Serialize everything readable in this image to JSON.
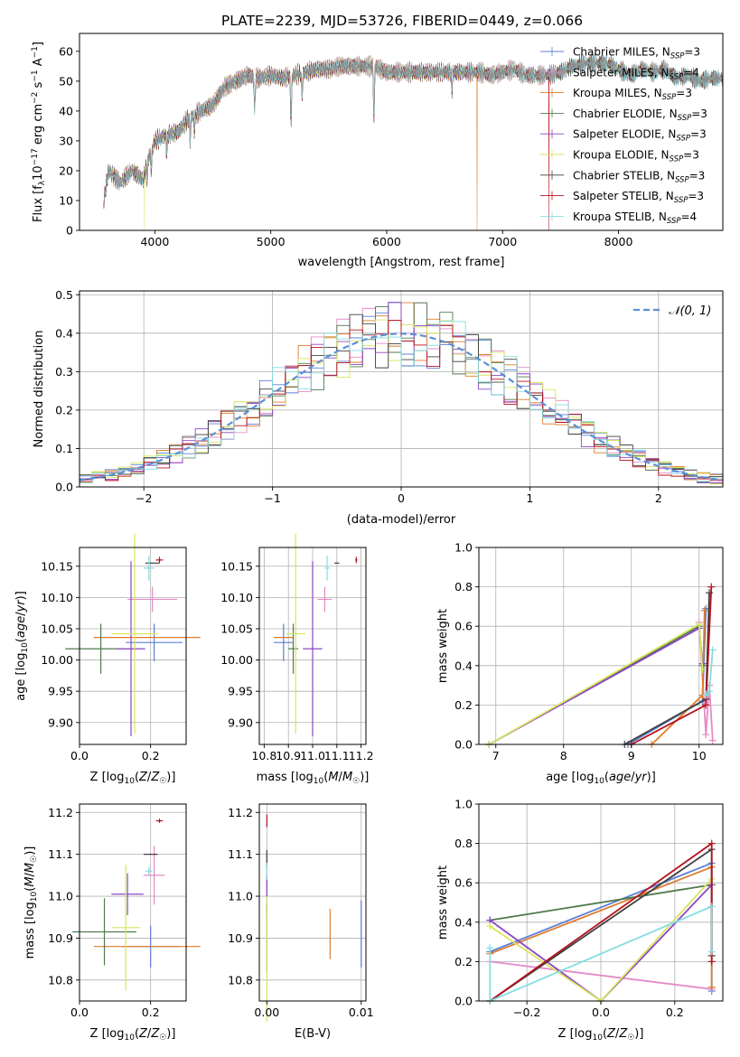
{
  "figure": {
    "title": "PLATE=2239, MJD=53726, FIBERID=0449, z=0.066"
  },
  "colors": {
    "Chabrier MILES": "#5b7fd6",
    "Salpeter MILES": "#e58ac7",
    "Kroupa MILES": "#e07b2a",
    "Chabrier ELODIE": "#4f7a4f",
    "Salpeter ELODIE": "#8e44c4",
    "Kroupa ELODIE": "#d6e65c",
    "Chabrier STELIB": "#404040",
    "Salpeter STELIB": "#b5121b",
    "Kroupa STELIB": "#84dde0",
    "normal": "#5b8fd6",
    "spectrum": "#6a6a6a"
  },
  "chart_data": [
    {
      "id": "spectrum",
      "type": "line",
      "xlabel": "wavelength [Angstrom, rest frame]",
      "ylabel": "Flux [f_λ10^-17 erg cm^-2 s^-1 A^-1]",
      "xlim": [
        3350,
        8900
      ],
      "ylim": [
        0,
        66
      ],
      "xticks": [
        4000,
        5000,
        6000,
        7000,
        8000
      ],
      "yticks": [
        0,
        10,
        20,
        30,
        40,
        50,
        60
      ],
      "legend_position": "upper-right",
      "legend": [
        {
          "model": "Chabrier MILES",
          "nssp": "3"
        },
        {
          "model": "Salpeter MILES",
          "nssp": "4"
        },
        {
          "model": "Kroupa MILES",
          "nssp": "3"
        },
        {
          "model": "Chabrier ELODIE",
          "nssp": "3"
        },
        {
          "model": "Salpeter ELODIE",
          "nssp": "3"
        },
        {
          "model": "Kroupa ELODIE",
          "nssp": "3"
        },
        {
          "model": "Chabrier STELIB",
          "nssp": "3"
        },
        {
          "model": "Salpeter STELIB",
          "nssp": "3"
        },
        {
          "model": "Kroupa STELIB",
          "nssp": "4"
        }
      ],
      "continuum": [
        [
          3560,
          10
        ],
        [
          3600,
          20
        ],
        [
          3700,
          16
        ],
        [
          3800,
          20
        ],
        [
          3900,
          17
        ],
        [
          3950,
          25
        ],
        [
          4000,
          30
        ],
        [
          4100,
          32
        ],
        [
          4200,
          33
        ],
        [
          4300,
          38
        ],
        [
          4400,
          40
        ],
        [
          4500,
          42
        ],
        [
          4600,
          48
        ],
        [
          4700,
          50
        ],
        [
          4800,
          52
        ],
        [
          4900,
          51
        ],
        [
          5000,
          52
        ],
        [
          5100,
          51
        ],
        [
          5200,
          52
        ],
        [
          5300,
          53
        ],
        [
          5400,
          54
        ],
        [
          5500,
          54
        ],
        [
          5600,
          55
        ],
        [
          5700,
          55
        ],
        [
          5800,
          55
        ],
        [
          5900,
          55
        ],
        [
          6000,
          53
        ],
        [
          6100,
          53
        ],
        [
          6200,
          53
        ],
        [
          6300,
          53
        ],
        [
          6400,
          53
        ],
        [
          6500,
          53
        ],
        [
          6600,
          53
        ],
        [
          6700,
          53
        ],
        [
          6800,
          53
        ],
        [
          6900,
          52
        ],
        [
          7000,
          53
        ],
        [
          7100,
          54
        ],
        [
          7200,
          52
        ],
        [
          7300,
          52
        ],
        [
          7400,
          52
        ],
        [
          7500,
          53
        ],
        [
          7600,
          55
        ],
        [
          7700,
          56
        ],
        [
          7800,
          56
        ],
        [
          7900,
          56
        ],
        [
          8000,
          54
        ],
        [
          8100,
          52
        ],
        [
          8200,
          54
        ],
        [
          8300,
          53
        ],
        [
          8400,
          54
        ],
        [
          8500,
          51
        ],
        [
          8600,
          52
        ],
        [
          8700,
          50
        ],
        [
          8800,
          51
        ]
      ],
      "absorption_lines": [
        [
          3934,
          18
        ],
        [
          3969,
          20
        ],
        [
          4102,
          26
        ],
        [
          4304,
          30
        ],
        [
          4341,
          33
        ],
        [
          4861,
          40
        ],
        [
          5175,
          36
        ],
        [
          5270,
          45
        ],
        [
          5890,
          36
        ],
        [
          6563,
          47
        ]
      ],
      "model_drops": [
        {
          "model": "Kroupa ELODIE",
          "x": 3910
        },
        {
          "model": "Kroupa MILES",
          "x": 6780
        },
        {
          "model": "Salpeter STELIB",
          "x": 7400
        }
      ]
    },
    {
      "id": "residuals",
      "type": "histogram",
      "xlabel": "(data-model)/error",
      "ylabel": "Normed distribution",
      "xlim": [
        -2.5,
        2.5
      ],
      "ylim": [
        0,
        0.51
      ],
      "xticks": [
        -2,
        -1,
        0,
        1,
        2
      ],
      "yticks": [
        0.0,
        0.1,
        0.2,
        0.3,
        0.4,
        0.5
      ],
      "grid": true,
      "legend_position": "upper-right",
      "legend": [
        {
          "label": "𝒩(0, 1)",
          "style": "dashed"
        }
      ],
      "bin_width": 0.1,
      "bin_start": -2.5,
      "series_noise_seeds": [
        11,
        23,
        37,
        41,
        53,
        67,
        71,
        83,
        97
      ]
    },
    {
      "id": "age-vs-Z",
      "type": "errorbar",
      "xlabel": "Z [log10(Z/Z☉)]",
      "ylabel": "age  [log10(age/yr)]",
      "xlim": [
        0.0,
        0.3
      ],
      "ylim": [
        9.865,
        10.18
      ],
      "xticks": [
        0.0,
        0.2
      ],
      "yticks": [
        9.9,
        9.95,
        10.0,
        10.05,
        10.1,
        10.15
      ],
      "grid": true,
      "points": [
        {
          "model": "Chabrier MILES",
          "x": 0.21,
          "xerr": 0.08,
          "y": 10.028,
          "yerr": 0.03
        },
        {
          "model": "Salpeter MILES",
          "x": 0.205,
          "xerr": 0.07,
          "y": 10.097,
          "yerr": 0.02
        },
        {
          "model": "Kroupa MILES",
          "x": 0.19,
          "xerr": 0.15,
          "y": 10.036,
          "yerr": 0.0
        },
        {
          "model": "Chabrier ELODIE",
          "x": 0.06,
          "xerr": 0.1,
          "y": 10.018,
          "yerr": 0.04
        },
        {
          "model": "Salpeter ELODIE",
          "x": 0.145,
          "xerr": 0.04,
          "y": 10.018,
          "yerr": 0.14
        },
        {
          "model": "Kroupa ELODIE",
          "x": 0.155,
          "xerr": 0.065,
          "y": 10.042,
          "yerr": 0.16
        },
        {
          "model": "Chabrier STELIB",
          "x": 0.205,
          "xerr": 0.02,
          "y": 10.155,
          "yerr": 0.0
        },
        {
          "model": "Salpeter STELIB",
          "x": 0.225,
          "xerr": 0.01,
          "y": 10.16,
          "yerr": 0.005
        },
        {
          "model": "Kroupa STELIB",
          "x": 0.195,
          "xerr": 0.015,
          "y": 10.147,
          "yerr": 0.02
        }
      ]
    },
    {
      "id": "age-vs-mass",
      "type": "errorbar",
      "xlabel": "mass [log10(M/M☉)]",
      "ylabel": "",
      "xlim": [
        10.78,
        11.22
      ],
      "ylim": [
        9.865,
        10.18
      ],
      "xticks": [
        10.8,
        10.9,
        11.0,
        11.1,
        11.2
      ],
      "yticks": [
        9.9,
        9.95,
        10.0,
        10.05,
        10.1,
        10.15
      ],
      "grid": true,
      "points": [
        {
          "model": "Chabrier MILES",
          "x": 10.88,
          "xerr": 0.04,
          "y": 10.028,
          "yerr": 0.03
        },
        {
          "model": "Salpeter MILES",
          "x": 11.05,
          "xerr": 0.03,
          "y": 10.097,
          "yerr": 0.02
        },
        {
          "model": "Kroupa MILES",
          "x": 10.88,
          "xerr": 0.04,
          "y": 10.036,
          "yerr": 0.0
        },
        {
          "model": "Chabrier ELODIE",
          "x": 10.92,
          "xerr": 0.02,
          "y": 10.018,
          "yerr": 0.04
        },
        {
          "model": "Salpeter ELODIE",
          "x": 11.0,
          "xerr": 0.04,
          "y": 10.018,
          "yerr": 0.14
        },
        {
          "model": "Kroupa ELODIE",
          "x": 10.93,
          "xerr": 0.04,
          "y": 10.042,
          "yerr": 0.16
        },
        {
          "model": "Chabrier STELIB",
          "x": 11.1,
          "xerr": 0.01,
          "y": 10.155,
          "yerr": 0.0
        },
        {
          "model": "Salpeter STELIB",
          "x": 11.18,
          "xerr": 0.005,
          "y": 10.16,
          "yerr": 0.005
        },
        {
          "model": "Kroupa STELIB",
          "x": 11.06,
          "xerr": 0.01,
          "y": 10.147,
          "yerr": 0.02
        }
      ]
    },
    {
      "id": "weight-vs-age",
      "type": "line",
      "xlabel": "age  [log10(age/yr)]",
      "ylabel": "mass weight",
      "xlim": [
        6.75,
        10.35
      ],
      "ylim": [
        0,
        1.0
      ],
      "xticks": [
        7,
        8,
        9,
        10
      ],
      "yticks": [
        0.0,
        0.2,
        0.4,
        0.6,
        0.8,
        1.0
      ],
      "grid": true,
      "series": [
        {
          "model": "Chabrier MILES",
          "x": [
            8.95,
            10.05,
            10.1
          ],
          "y": [
            0.0,
            0.22,
            0.69
          ]
        },
        {
          "model": "Salpeter MILES",
          "x": [
            10.0,
            10.1,
            10.15,
            10.2
          ],
          "y": [
            0.62,
            0.05,
            0.3,
            0.02
          ]
        },
        {
          "model": "Kroupa MILES",
          "x": [
            9.3,
            10.05,
            10.08
          ],
          "y": [
            0.0,
            0.25,
            0.68
          ]
        },
        {
          "model": "Chabrier ELODIE",
          "x": [
            6.9,
            10.0,
            10.05
          ],
          "y": [
            0.0,
            0.6,
            0.4
          ]
        },
        {
          "model": "Salpeter ELODIE",
          "x": [
            6.9,
            10.0,
            10.05
          ],
          "y": [
            0.0,
            0.59,
            0.41
          ]
        },
        {
          "model": "Kroupa ELODIE",
          "x": [
            6.9,
            10.0,
            10.05
          ],
          "y": [
            0.0,
            0.61,
            0.38
          ]
        },
        {
          "model": "Chabrier STELIB",
          "x": [
            8.9,
            10.1,
            10.15
          ],
          "y": [
            0.0,
            0.23,
            0.77
          ]
        },
        {
          "model": "Salpeter STELIB",
          "x": [
            9.0,
            10.1,
            10.18
          ],
          "y": [
            0.0,
            0.2,
            0.8
          ]
        },
        {
          "model": "Kroupa STELIB",
          "x": [
            10.1,
            10.15,
            10.2
          ],
          "y": [
            0.25,
            0.27,
            0.48
          ]
        }
      ]
    },
    {
      "id": "mass-vs-Z",
      "type": "errorbar",
      "xlabel": "Z [log10(Z/Z☉)]",
      "ylabel": "mass [log10(M/M☉)]",
      "xlim": [
        0.0,
        0.3
      ],
      "ylim": [
        10.75,
        11.22
      ],
      "xticks": [
        0.0,
        0.2
      ],
      "yticks": [
        10.8,
        10.9,
        11.0,
        11.1,
        11.2
      ],
      "grid": true,
      "points": [
        {
          "model": "Chabrier MILES",
          "x": 0.2,
          "xerr": 0.08,
          "y": 10.88,
          "yerr": 0.05
        },
        {
          "model": "Salpeter MILES",
          "x": 0.21,
          "xerr": 0.03,
          "y": 11.05,
          "yerr": 0.07
        },
        {
          "model": "Kroupa MILES",
          "x": 0.19,
          "xerr": 0.15,
          "y": 10.88,
          "yerr": 0.0
        },
        {
          "model": "Chabrier ELODIE",
          "x": 0.07,
          "xerr": 0.09,
          "y": 10.915,
          "yerr": 0.08
        },
        {
          "model": "Salpeter ELODIE",
          "x": 0.135,
          "xerr": 0.045,
          "y": 11.005,
          "yerr": 0.05
        },
        {
          "model": "Kroupa ELODIE",
          "x": 0.13,
          "xerr": 0.04,
          "y": 10.925,
          "yerr": 0.15
        },
        {
          "model": "Chabrier STELIB",
          "x": 0.2,
          "xerr": 0.02,
          "y": 11.1,
          "yerr": 0.0
        },
        {
          "model": "Salpeter STELIB",
          "x": 0.225,
          "xerr": 0.01,
          "y": 11.18,
          "yerr": 0.005
        },
        {
          "model": "Kroupa STELIB",
          "x": 0.195,
          "xerr": 0.01,
          "y": 11.06,
          "yerr": 0.01
        }
      ]
    },
    {
      "id": "mass-vs-ebv",
      "type": "errorbar",
      "xlabel": "E(B-V)",
      "ylabel": "",
      "xlim": [
        -0.0008,
        0.0105
      ],
      "ylim": [
        10.75,
        11.22
      ],
      "xticks": [
        0.0,
        0.01
      ],
      "yticks": [
        10.8,
        10.9,
        11.0,
        11.1,
        11.2
      ],
      "grid": true,
      "points": [
        {
          "model": "Chabrier MILES",
          "x": 0.01,
          "xerr": 0.0,
          "y": 10.91,
          "yerr": 0.08
        },
        {
          "model": "Salpeter MILES",
          "x": 0.0,
          "xerr": 0.0,
          "y": 11.05,
          "yerr": 0.05
        },
        {
          "model": "Kroupa MILES",
          "x": 0.0067,
          "xerr": 0.0,
          "y": 10.91,
          "yerr": 0.06
        },
        {
          "model": "Chabrier ELODIE",
          "x": 0.0,
          "xerr": 0.0,
          "y": 10.9,
          "yerr": 0.08
        },
        {
          "model": "Salpeter ELODIE",
          "x": 0.0,
          "xerr": 0.0,
          "y": 11.0,
          "yerr": 0.05
        },
        {
          "model": "Kroupa ELODIE",
          "x": 0.0,
          "xerr": 0.0,
          "y": 10.85,
          "yerr": 0.15
        },
        {
          "model": "Chabrier STELIB",
          "x": 0.0,
          "xerr": 0.0,
          "y": 11.09,
          "yerr": 0.02
        },
        {
          "model": "Salpeter STELIB",
          "x": 0.0,
          "xerr": 0.0,
          "y": 11.18,
          "yerr": 0.015
        },
        {
          "model": "Kroupa STELIB",
          "x": 0.0,
          "xerr": 0.0,
          "y": 11.06,
          "yerr": 0.02
        }
      ]
    },
    {
      "id": "weight-vs-Z",
      "type": "line",
      "xlabel": "Z [log10(Z/Z☉)]",
      "ylabel": "mass weight",
      "xlim": [
        -0.33,
        0.33
      ],
      "ylim": [
        0,
        1.0
      ],
      "xticks": [
        -0.2,
        0.0,
        0.2
      ],
      "yticks": [
        0.0,
        0.2,
        0.4,
        0.6,
        0.8,
        1.0
      ],
      "grid": true,
      "series": [
        {
          "model": "Chabrier MILES",
          "x": [
            -0.3,
            0.3,
            0.3
          ],
          "y": [
            0.25,
            0.7,
            0.05
          ]
        },
        {
          "model": "Salpeter MILES",
          "x": [
            -0.3,
            0.3
          ],
          "y": [
            0.2,
            0.06
          ]
        },
        {
          "model": "Kroupa MILES",
          "x": [
            -0.3,
            0.3,
            0.3
          ],
          "y": [
            0.24,
            0.68,
            0.07
          ]
        },
        {
          "model": "Chabrier ELODIE",
          "x": [
            -0.3,
            0.3
          ],
          "y": [
            0.41,
            0.59
          ]
        },
        {
          "model": "Salpeter ELODIE",
          "x": [
            -0.3,
            0.0,
            0.3
          ],
          "y": [
            0.41,
            0.0,
            0.59
          ]
        },
        {
          "model": "Kroupa ELODIE",
          "x": [
            -0.3,
            0.0,
            0.3
          ],
          "y": [
            0.38,
            0.0,
            0.62
          ]
        },
        {
          "model": "Chabrier STELIB",
          "x": [
            -0.3,
            0.3,
            0.3
          ],
          "y": [
            0.0,
            0.77,
            0.23
          ]
        },
        {
          "model": "Salpeter STELIB",
          "x": [
            -0.3,
            0.3,
            0.3
          ],
          "y": [
            0.0,
            0.8,
            0.2
          ]
        },
        {
          "model": "Kroupa STELIB",
          "x": [
            -0.3,
            -0.3,
            0.3,
            0.3
          ],
          "y": [
            0.27,
            0.0,
            0.48,
            0.25
          ]
        }
      ]
    }
  ]
}
